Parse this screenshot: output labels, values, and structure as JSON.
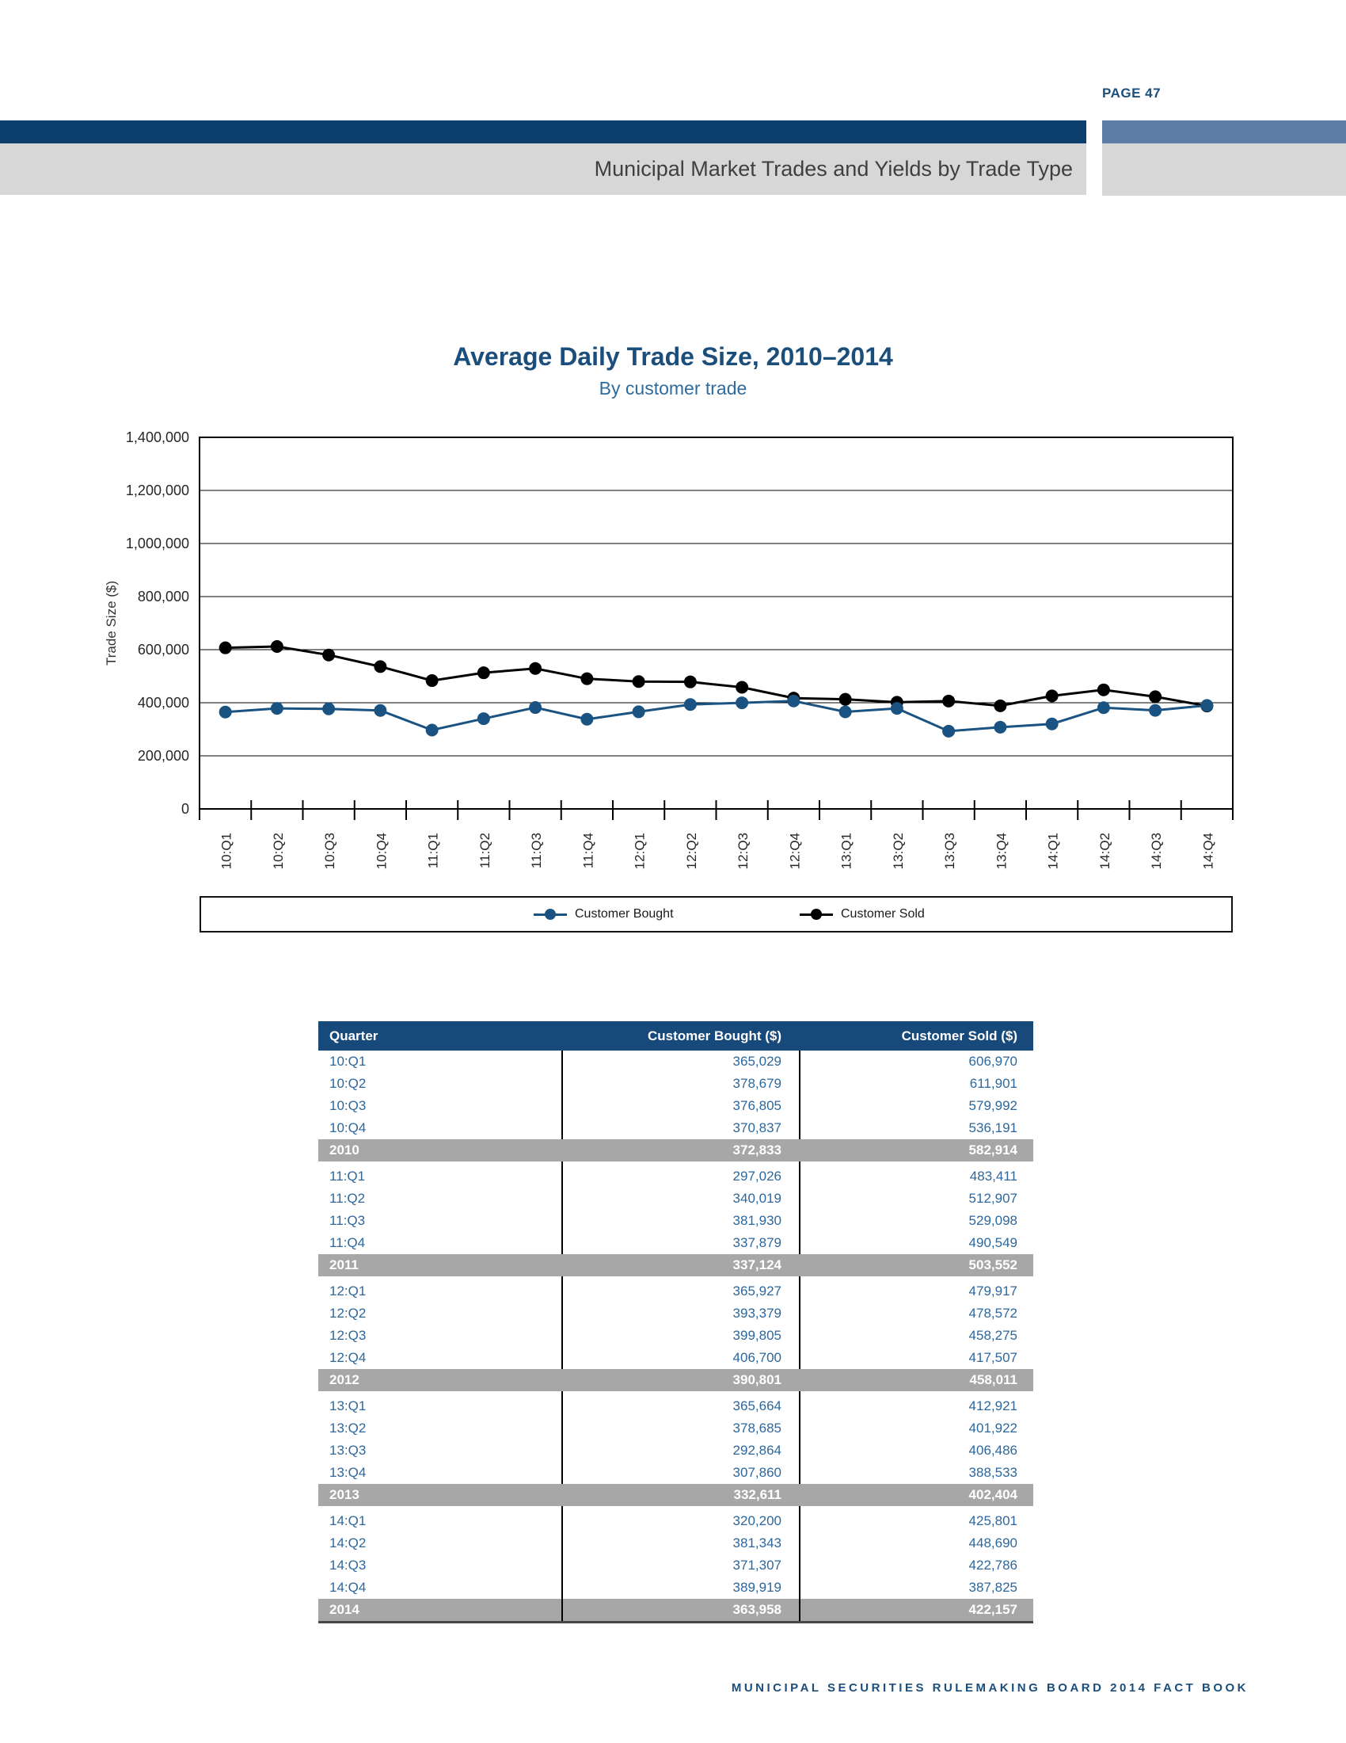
{
  "page": {
    "number_label": "PAGE 47",
    "section_title": "Municipal Market Trades and Yields by Trade Type",
    "footer": "MUNICIPAL SECURITIES RULEMAKING BOARD 2014 FACT BOOK"
  },
  "colors": {
    "navy_bar": "#0c3e6e",
    "slate_bar": "#5c7da6",
    "gray_band": "#d7d7d7",
    "title_navy": "#1b4e7b",
    "subtitle_blue": "#2f6b9d",
    "series_bought_blue": "#1a5381",
    "series_sold_black": "#000000",
    "table_header_bg": "#174a7b",
    "table_text_blue": "#2d679c",
    "year_row_gray": "#a7a7a7"
  },
  "chart_data": {
    "type": "line",
    "title": "Average Daily Trade Size, 2010–2014",
    "subtitle": "By customer trade",
    "ylabel": "Trade Size ($)",
    "ylim": [
      0,
      1400000
    ],
    "ytick_step": 200000,
    "yticklabels": [
      "0",
      "200,000",
      "400,000",
      "600,000",
      "800,000",
      "1,000,000",
      "1,200,000",
      "1,400,000"
    ],
    "grid": "horizontal",
    "legend_position": "bottom",
    "categories": [
      "10:Q1",
      "10:Q2",
      "10:Q3",
      "10:Q4",
      "11:Q1",
      "11:Q2",
      "11:Q3",
      "11:Q4",
      "12:Q1",
      "12:Q2",
      "12:Q3",
      "12:Q4",
      "13:Q1",
      "13:Q2",
      "13:Q3",
      "13:Q4",
      "14:Q1",
      "14:Q2",
      "14:Q3",
      "14:Q4"
    ],
    "series": [
      {
        "name": "Customer Bought",
        "color": "#1a5381",
        "values": [
          365029,
          378679,
          376805,
          370837,
          297026,
          340019,
          381930,
          337879,
          365927,
          393379,
          399805,
          406700,
          365664,
          378685,
          292864,
          307860,
          320200,
          381343,
          371307,
          389919
        ]
      },
      {
        "name": "Customer Sold",
        "color": "#000000",
        "values": [
          606970,
          611901,
          579992,
          536191,
          483411,
          512907,
          529098,
          490549,
          479917,
          478572,
          458275,
          417507,
          412921,
          401922,
          406486,
          388533,
          425801,
          448690,
          422786,
          387825
        ]
      }
    ]
  },
  "table": {
    "headers": [
      "Quarter",
      "Customer Bought ($)",
      "Customer Sold ($)"
    ],
    "rows": [
      {
        "quarter": "10:Q1",
        "bought": "365,029",
        "sold": "606,970",
        "is_total": false
      },
      {
        "quarter": "10:Q2",
        "bought": "378,679",
        "sold": "611,901",
        "is_total": false
      },
      {
        "quarter": "10:Q3",
        "bought": "376,805",
        "sold": "579,992",
        "is_total": false
      },
      {
        "quarter": "10:Q4",
        "bought": "370,837",
        "sold": "536,191",
        "is_total": false
      },
      {
        "quarter": "2010",
        "bought": "372,833",
        "sold": "582,914",
        "is_total": true
      },
      {
        "quarter": "11:Q1",
        "bought": "297,026",
        "sold": "483,411",
        "is_total": false
      },
      {
        "quarter": "11:Q2",
        "bought": "340,019",
        "sold": "512,907",
        "is_total": false
      },
      {
        "quarter": "11:Q3",
        "bought": "381,930",
        "sold": "529,098",
        "is_total": false
      },
      {
        "quarter": "11:Q4",
        "bought": "337,879",
        "sold": "490,549",
        "is_total": false
      },
      {
        "quarter": "2011",
        "bought": "337,124",
        "sold": "503,552",
        "is_total": true
      },
      {
        "quarter": "12:Q1",
        "bought": "365,927",
        "sold": "479,917",
        "is_total": false
      },
      {
        "quarter": "12:Q2",
        "bought": "393,379",
        "sold": "478,572",
        "is_total": false
      },
      {
        "quarter": "12:Q3",
        "bought": "399,805",
        "sold": "458,275",
        "is_total": false
      },
      {
        "quarter": "12:Q4",
        "bought": "406,700",
        "sold": "417,507",
        "is_total": false
      },
      {
        "quarter": "2012",
        "bought": "390,801",
        "sold": "458,011",
        "is_total": true
      },
      {
        "quarter": "13:Q1",
        "bought": "365,664",
        "sold": "412,921",
        "is_total": false
      },
      {
        "quarter": "13:Q2",
        "bought": "378,685",
        "sold": "401,922",
        "is_total": false
      },
      {
        "quarter": "13:Q3",
        "bought": "292,864",
        "sold": "406,486",
        "is_total": false
      },
      {
        "quarter": "13:Q4",
        "bought": "307,860",
        "sold": "388,533",
        "is_total": false
      },
      {
        "quarter": "2013",
        "bought": "332,611",
        "sold": "402,404",
        "is_total": true
      },
      {
        "quarter": "14:Q1",
        "bought": "320,200",
        "sold": "425,801",
        "is_total": false
      },
      {
        "quarter": "14:Q2",
        "bought": "381,343",
        "sold": "448,690",
        "is_total": false
      },
      {
        "quarter": "14:Q3",
        "bought": "371,307",
        "sold": "422,786",
        "is_total": false
      },
      {
        "quarter": "14:Q4",
        "bought": "389,919",
        "sold": "387,825",
        "is_total": false
      },
      {
        "quarter": "2014",
        "bought": "363,958",
        "sold": "422,157",
        "is_total": true
      }
    ]
  }
}
